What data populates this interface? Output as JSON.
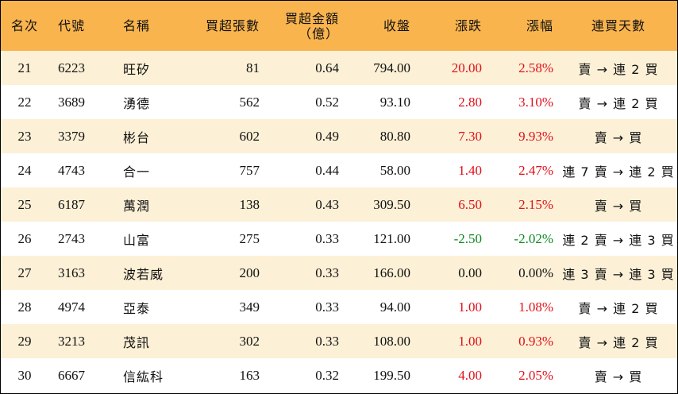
{
  "headers": {
    "rank": "名次",
    "code": "代號",
    "name": "名稱",
    "net_buy_lots": "買超張數",
    "net_buy_amount_line1": "買超金額",
    "net_buy_amount_line2": "（億）",
    "close": "收盤",
    "change": "漲跌",
    "change_pct": "漲幅",
    "consecutive_days": "連買天數"
  },
  "colors": {
    "header_bg": "#f9b44e",
    "stripe_bg": "#fcf0d6",
    "up": "#e0101a",
    "down": "#0a8a1f"
  },
  "rows": [
    {
      "rank": "21",
      "code": "6223",
      "name": "旺矽",
      "lots": "81",
      "amount": "0.64",
      "close": "794.00",
      "change": "20.00",
      "pct": "2.58%",
      "trend": "up",
      "days": "賣 → 連 2 買"
    },
    {
      "rank": "22",
      "code": "3689",
      "name": "湧德",
      "lots": "562",
      "amount": "0.52",
      "close": "93.10",
      "change": "2.80",
      "pct": "3.10%",
      "trend": "up",
      "days": "賣 → 連 2 買"
    },
    {
      "rank": "23",
      "code": "3379",
      "name": "彬台",
      "lots": "602",
      "amount": "0.49",
      "close": "80.80",
      "change": "7.30",
      "pct": "9.93%",
      "trend": "up",
      "days": "賣 → 買"
    },
    {
      "rank": "24",
      "code": "4743",
      "name": "合一",
      "lots": "757",
      "amount": "0.44",
      "close": "58.00",
      "change": "1.40",
      "pct": "2.47%",
      "trend": "up",
      "days": "連 7 賣 → 連 2 買"
    },
    {
      "rank": "25",
      "code": "6187",
      "name": "萬潤",
      "lots": "138",
      "amount": "0.43",
      "close": "309.50",
      "change": "6.50",
      "pct": "2.15%",
      "trend": "up",
      "days": "賣 → 買"
    },
    {
      "rank": "26",
      "code": "2743",
      "name": "山富",
      "lots": "275",
      "amount": "0.33",
      "close": "121.00",
      "change": "-2.50",
      "pct": "-2.02%",
      "trend": "down",
      "days": "連 2 賣 → 連 3 買"
    },
    {
      "rank": "27",
      "code": "3163",
      "name": "波若威",
      "lots": "200",
      "amount": "0.33",
      "close": "166.00",
      "change": "0.00",
      "pct": "0.00%",
      "trend": "flat",
      "days": "連 3 賣 → 連 3 買"
    },
    {
      "rank": "28",
      "code": "4974",
      "name": "亞泰",
      "lots": "349",
      "amount": "0.33",
      "close": "94.00",
      "change": "1.00",
      "pct": "1.08%",
      "trend": "up",
      "days": "賣 → 連 2 買"
    },
    {
      "rank": "29",
      "code": "3213",
      "name": "茂訊",
      "lots": "302",
      "amount": "0.33",
      "close": "108.00",
      "change": "1.00",
      "pct": "0.93%",
      "trend": "up",
      "days": "賣 → 連 2 買"
    },
    {
      "rank": "30",
      "code": "6667",
      "name": "信紘科",
      "lots": "163",
      "amount": "0.32",
      "close": "199.50",
      "change": "4.00",
      "pct": "2.05%",
      "trend": "up",
      "days": "賣 → 買"
    }
  ]
}
